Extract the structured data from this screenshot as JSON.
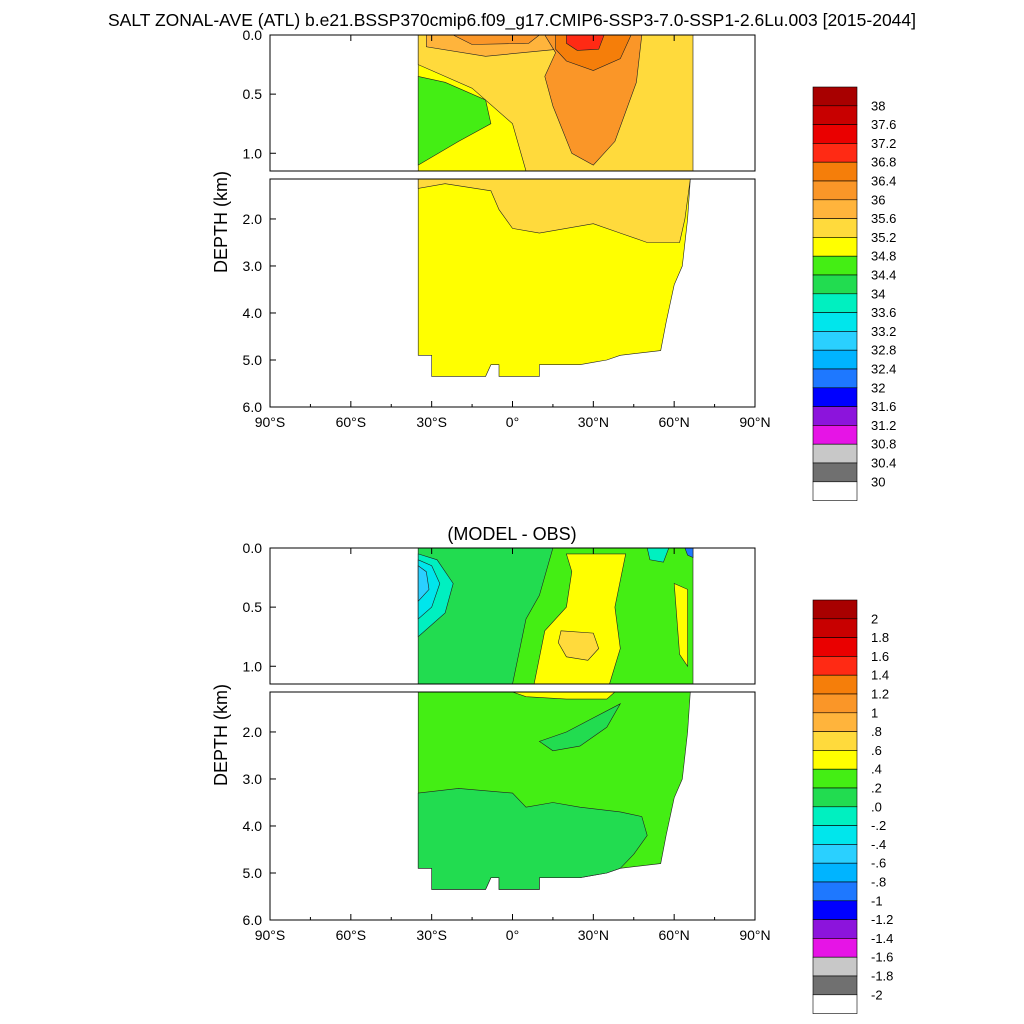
{
  "title": "SALT ZONAL-AVE (ATL) b.e21.BSSP370cmip6.f09_g17.CMIP6-SSP3-7.0-SSP1-2.6Lu.003 [2015-2044]",
  "chart_data": [
    {
      "type": "heatmap",
      "title": "",
      "xlabel": "",
      "ylabel": "DEPTH (km)",
      "x_tick_labels": [
        "90°S",
        "60°S",
        "30°S",
        "0°",
        "30°N",
        "60°N",
        "90°N"
      ],
      "x_tick_values": [
        -90,
        -60,
        -30,
        0,
        30,
        60,
        90
      ],
      "y_tick_labels_upper": [
        "0.0",
        "0.5",
        "1.0"
      ],
      "y_tick_values_upper": [
        0.0,
        0.5,
        1.0
      ],
      "y_tick_labels_lower": [
        "2.0",
        "3.0",
        "4.0",
        "5.0",
        "6.0"
      ],
      "y_tick_values_lower": [
        2.0,
        3.0,
        4.0,
        5.0,
        6.0
      ],
      "xlim": [
        -90,
        90
      ],
      "ylim_upper": [
        0.0,
        1.15
      ],
      "ylim_lower": [
        1.15,
        6.0
      ],
      "colorbar_labels": [
        "38",
        "37.6",
        "37.2",
        "36.8",
        "36.4",
        "36",
        "35.6",
        "35.2",
        "34.8",
        "34.4",
        "34",
        "33.6",
        "33.2",
        "32.8",
        "32.4",
        "32",
        "31.6",
        "31.2",
        "30.8",
        "30.4",
        "30"
      ],
      "colorbar_colors": [
        "#a80000",
        "#c80000",
        "#ea0000",
        "#ff2a14",
        "#f57e0a",
        "#fa9628",
        "#ffb43c",
        "#ffda3c",
        "#ffff00",
        "#44ee14",
        "#22dc50",
        "#00f0c0",
        "#00e6ec",
        "#2ad0ff",
        "#00b4ff",
        "#1e78ff",
        "#0000ff",
        "#8c14dc",
        "#e614e6",
        "#c8c8c8",
        "#707070",
        "#ffffff"
      ],
      "regions": [
        {
          "band": "upper",
          "color": "#ffff00",
          "points": [
            [
              -35,
              0
            ],
            [
              66,
              0
            ],
            [
              66,
              1.15
            ],
            [
              -35,
              1.15
            ]
          ]
        },
        {
          "band": "upper",
          "color": "#ffda3c",
          "points": [
            [
              -35,
              0
            ],
            [
              67,
              0
            ],
            [
              67,
              1.15
            ],
            [
              5,
              1.15
            ],
            [
              0,
              0.75
            ],
            [
              -15,
              0.45
            ],
            [
              -35,
              0.25
            ]
          ]
        },
        {
          "band": "upper",
          "color": "#ffb43c",
          "points": [
            [
              -32,
              0
            ],
            [
              20,
              0
            ],
            [
              17,
              0.12
            ],
            [
              -10,
              0.18
            ],
            [
              -32,
              0.1
            ]
          ]
        },
        {
          "band": "upper",
          "color": "#fa9628",
          "points": [
            [
              -22,
              0
            ],
            [
              10,
              0
            ],
            [
              6,
              0.07
            ],
            [
              -15,
              0.08
            ]
          ]
        },
        {
          "band": "upper",
          "color": "#fa9628",
          "points": [
            [
              12,
              0
            ],
            [
              48,
              0
            ],
            [
              46,
              0.4
            ],
            [
              38,
              0.9
            ],
            [
              30,
              1.1
            ],
            [
              22,
              1.0
            ],
            [
              15,
              0.6
            ],
            [
              12,
              0.35
            ],
            [
              16,
              0.15
            ]
          ]
        },
        {
          "band": "upper",
          "color": "#f57e0a",
          "points": [
            [
              16,
              0
            ],
            [
              44,
              0
            ],
            [
              40,
              0.2
            ],
            [
              30,
              0.3
            ],
            [
              20,
              0.22
            ],
            [
              16,
              0.12
            ]
          ]
        },
        {
          "band": "upper",
          "color": "#ff2a14",
          "points": [
            [
              20,
              0
            ],
            [
              34,
              0
            ],
            [
              32,
              0.12
            ],
            [
              24,
              0.13
            ],
            [
              20,
              0.07
            ]
          ]
        },
        {
          "band": "upper",
          "color": "#44ee14",
          "points": [
            [
              -35,
              0.35
            ],
            [
              -25,
              0.4
            ],
            [
              -10,
              0.55
            ],
            [
              -8,
              0.75
            ],
            [
              -20,
              0.9
            ],
            [
              -35,
              1.1
            ]
          ]
        },
        {
          "band": "lower",
          "color": "#ffff00",
          "points": [
            [
              -35,
              1.15
            ],
            [
              66,
              1.15
            ],
            [
              65,
              2.0
            ],
            [
              63,
              3.0
            ],
            [
              60,
              3.4
            ],
            [
              57,
              4.2
            ],
            [
              55,
              4.8
            ],
            [
              40,
              4.9
            ],
            [
              35,
              5.0
            ],
            [
              30,
              5.05
            ],
            [
              25,
              5.1
            ],
            [
              20,
              5.1
            ],
            [
              15,
              5.1
            ],
            [
              10,
              5.1
            ],
            [
              10,
              5.35
            ],
            [
              -5,
              5.35
            ],
            [
              -5,
              5.1
            ],
            [
              -8,
              5.1
            ],
            [
              -10,
              5.35
            ],
            [
              -30,
              5.35
            ],
            [
              -30,
              4.9
            ],
            [
              -35,
              4.9
            ]
          ]
        },
        {
          "band": "lower",
          "color": "#ffda3c",
          "points": [
            [
              -35,
              1.15
            ],
            [
              66,
              1.15
            ],
            [
              64,
              2.0
            ],
            [
              62,
              2.5
            ],
            [
              50,
              2.5
            ],
            [
              40,
              2.3
            ],
            [
              30,
              2.1
            ],
            [
              10,
              2.3
            ],
            [
              0,
              2.2
            ],
            [
              -5,
              1.8
            ],
            [
              -8,
              1.4
            ],
            [
              -25,
              1.25
            ],
            [
              -35,
              1.35
            ]
          ]
        }
      ]
    },
    {
      "type": "heatmap",
      "title": "(MODEL - OBS)",
      "xlabel": "",
      "ylabel": "DEPTH (km)",
      "x_tick_labels": [
        "90°S",
        "60°S",
        "30°S",
        "0°",
        "30°N",
        "60°N",
        "90°N"
      ],
      "x_tick_values": [
        -90,
        -60,
        -30,
        0,
        30,
        60,
        90
      ],
      "y_tick_labels_upper": [
        "0.0",
        "0.5",
        "1.0"
      ],
      "y_tick_values_upper": [
        0.0,
        0.5,
        1.0
      ],
      "y_tick_labels_lower": [
        "2.0",
        "3.0",
        "4.0",
        "5.0",
        "6.0"
      ],
      "y_tick_values_lower": [
        2.0,
        3.0,
        4.0,
        5.0,
        6.0
      ],
      "xlim": [
        -90,
        90
      ],
      "ylim_upper": [
        0.0,
        1.15
      ],
      "ylim_lower": [
        1.15,
        6.0
      ],
      "colorbar_labels": [
        "2",
        "1.8",
        "1.6",
        "1.4",
        "1.2",
        "1",
        ".8",
        ".6",
        ".4",
        ".2",
        ".0",
        "-.2",
        "-.4",
        "-.6",
        "-.8",
        "-1",
        "-1.2",
        "-1.4",
        "-1.6",
        "-1.8",
        "-2"
      ],
      "colorbar_colors": [
        "#a80000",
        "#c80000",
        "#ea0000",
        "#ff2a14",
        "#f57e0a",
        "#fa9628",
        "#ffb43c",
        "#ffda3c",
        "#ffff00",
        "#44ee14",
        "#22dc50",
        "#00f0c0",
        "#00e6ec",
        "#2ad0ff",
        "#00b4ff",
        "#1e78ff",
        "#0000ff",
        "#8c14dc",
        "#e614e6",
        "#c8c8c8",
        "#707070",
        "#ffffff"
      ],
      "regions": [
        {
          "band": "upper",
          "color": "#44ee14",
          "points": [
            [
              -35,
              0
            ],
            [
              67,
              0
            ],
            [
              67,
              1.15
            ],
            [
              -35,
              1.15
            ]
          ]
        },
        {
          "band": "upper",
          "color": "#22dc50",
          "points": [
            [
              -35,
              0
            ],
            [
              15,
              0
            ],
            [
              10,
              0.4
            ],
            [
              5,
              0.6
            ],
            [
              0,
              1.15
            ],
            [
              -35,
              1.15
            ]
          ]
        },
        {
          "band": "upper",
          "color": "#00f0c0",
          "points": [
            [
              -35,
              0.05
            ],
            [
              -28,
              0.1
            ],
            [
              -22,
              0.3
            ],
            [
              -25,
              0.55
            ],
            [
              -35,
              0.75
            ]
          ]
        },
        {
          "band": "upper",
          "color": "#00e6ec",
          "points": [
            [
              -35,
              0.1
            ],
            [
              -30,
              0.15
            ],
            [
              -27,
              0.3
            ],
            [
              -30,
              0.5
            ],
            [
              -35,
              0.6
            ]
          ]
        },
        {
          "band": "upper",
          "color": "#2ad0ff",
          "points": [
            [
              -35,
              0.15
            ],
            [
              -32,
              0.2
            ],
            [
              -31,
              0.35
            ],
            [
              -35,
              0.45
            ]
          ]
        },
        {
          "band": "upper",
          "color": "#ffff00",
          "points": [
            [
              20,
              0.05
            ],
            [
              42,
              0.05
            ],
            [
              38,
              0.5
            ],
            [
              40,
              0.85
            ],
            [
              36,
              1.15
            ],
            [
              8,
              1.15
            ],
            [
              12,
              0.7
            ],
            [
              20,
              0.5
            ],
            [
              22,
              0.2
            ]
          ]
        },
        {
          "band": "upper",
          "color": "#ffda3c",
          "points": [
            [
              18,
              0.7
            ],
            [
              30,
              0.72
            ],
            [
              32,
              0.85
            ],
            [
              28,
              0.95
            ],
            [
              20,
              0.92
            ],
            [
              17,
              0.8
            ]
          ]
        },
        {
          "band": "upper",
          "color": "#00f0c0",
          "points": [
            [
              50,
              0
            ],
            [
              58,
              0
            ],
            [
              56,
              0.12
            ],
            [
              51,
              0.1
            ]
          ]
        },
        {
          "band": "upper",
          "color": "#ffff00",
          "points": [
            [
              60,
              0.3
            ],
            [
              65,
              0.35
            ],
            [
              65,
              1.0
            ],
            [
              62,
              0.9
            ]
          ]
        },
        {
          "band": "upper",
          "color": "#1e78ff",
          "points": [
            [
              64,
              0
            ],
            [
              67,
              0
            ],
            [
              67,
              0.08
            ],
            [
              65,
              0.06
            ]
          ]
        },
        {
          "band": "lower",
          "color": "#44ee14",
          "points": [
            [
              -35,
              1.15
            ],
            [
              66,
              1.15
            ],
            [
              65,
              2.0
            ],
            [
              63,
              3.0
            ],
            [
              60,
              3.4
            ],
            [
              57,
              4.2
            ],
            [
              55,
              4.8
            ],
            [
              40,
              4.9
            ],
            [
              35,
              5.0
            ],
            [
              30,
              5.05
            ],
            [
              25,
              5.1
            ],
            [
              15,
              5.1
            ],
            [
              10,
              5.1
            ],
            [
              10,
              5.35
            ],
            [
              -5,
              5.35
            ],
            [
              -5,
              5.1
            ],
            [
              -8,
              5.1
            ],
            [
              -10,
              5.35
            ],
            [
              -30,
              5.35
            ],
            [
              -30,
              4.9
            ],
            [
              -35,
              4.9
            ]
          ]
        },
        {
          "band": "lower",
          "color": "#22dc50",
          "points": [
            [
              -35,
              3.3
            ],
            [
              -20,
              3.2
            ],
            [
              0,
              3.3
            ],
            [
              5,
              3.6
            ],
            [
              15,
              3.5
            ],
            [
              25,
              3.6
            ],
            [
              40,
              3.7
            ],
            [
              48,
              3.8
            ],
            [
              50,
              4.2
            ],
            [
              45,
              4.6
            ],
            [
              40,
              4.9
            ],
            [
              35,
              5.0
            ],
            [
              30,
              5.05
            ],
            [
              25,
              5.1
            ],
            [
              15,
              5.1
            ],
            [
              10,
              5.1
            ],
            [
              10,
              5.35
            ],
            [
              -5,
              5.35
            ],
            [
              -5,
              5.1
            ],
            [
              -8,
              5.1
            ],
            [
              -10,
              5.35
            ],
            [
              -30,
              5.35
            ],
            [
              -30,
              4.9
            ],
            [
              -35,
              4.9
            ]
          ]
        },
        {
          "band": "lower",
          "color": "#22dc50",
          "points": [
            [
              10,
              2.2
            ],
            [
              20,
              2.0
            ],
            [
              30,
              1.7
            ],
            [
              40,
              1.4
            ],
            [
              35,
              1.9
            ],
            [
              25,
              2.3
            ],
            [
              15,
              2.4
            ]
          ]
        },
        {
          "band": "lower",
          "color": "#ffff00",
          "points": [
            [
              0,
              1.15
            ],
            [
              38,
              1.15
            ],
            [
              35,
              1.3
            ],
            [
              20,
              1.3
            ],
            [
              5,
              1.25
            ]
          ]
        }
      ]
    }
  ]
}
